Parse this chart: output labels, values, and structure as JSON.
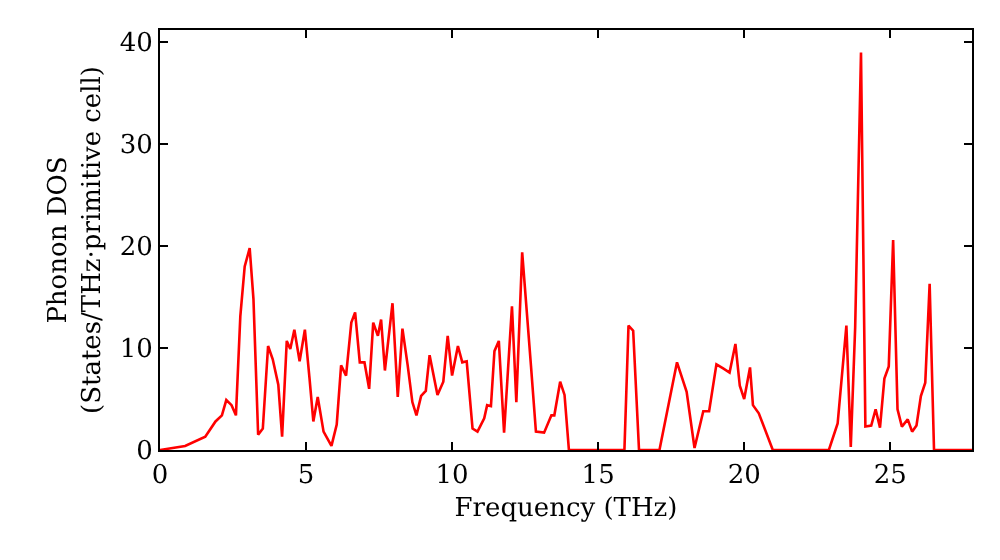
{
  "chart_data": {
    "type": "line",
    "xlabel": "Frequency (THz)",
    "ylabel": "Phonon DOS\n(States/THz·primitive cell)",
    "x": [
      0,
      0.86,
      1.55,
      1.9,
      2.12,
      2.27,
      2.45,
      2.6,
      2.75,
      2.9,
      3.07,
      3.2,
      3.36,
      3.52,
      3.7,
      3.86,
      4.05,
      4.18,
      4.34,
      4.46,
      4.6,
      4.78,
      4.96,
      5.12,
      5.25,
      5.4,
      5.6,
      5.87,
      6.05,
      6.2,
      6.37,
      6.55,
      6.68,
      6.84,
      7.0,
      7.16,
      7.3,
      7.46,
      7.57,
      7.7,
      7.96,
      8.14,
      8.3,
      8.48,
      8.64,
      8.78,
      8.94,
      9.1,
      9.23,
      9.5,
      9.7,
      9.85,
      10.0,
      10.2,
      10.35,
      10.5,
      10.7,
      10.87,
      11.1,
      11.2,
      11.33,
      11.45,
      11.6,
      11.78,
      12.05,
      12.2,
      12.4,
      12.7,
      12.87,
      13.15,
      13.4,
      13.5,
      13.7,
      13.85,
      14.0,
      15.9,
      16.04,
      16.2,
      16.4,
      17.1,
      17.7,
      18.03,
      18.3,
      18.6,
      18.8,
      19.05,
      19.28,
      19.5,
      19.7,
      19.85,
      20.0,
      20.2,
      20.3,
      20.5,
      20.98,
      22.9,
      23.2,
      23.5,
      23.65,
      23.8,
      24.0,
      24.15,
      24.35,
      24.5,
      24.65,
      24.8,
      24.95,
      25.1,
      25.25,
      25.4,
      25.6,
      25.75,
      25.9,
      26.05,
      26.2,
      26.35,
      26.5,
      27.8
    ],
    "series": [
      {
        "color": "#ff0000",
        "values": [
          0,
          0.4,
          1.3,
          2.8,
          3.4,
          4.9,
          4.4,
          3.4,
          13.1,
          18,
          19.8,
          14.8,
          1.5,
          2.1,
          10.2,
          8.9,
          6.4,
          1.3,
          10.7,
          9.9,
          11.8,
          8.7,
          11.8,
          7,
          2.8,
          5.2,
          1.8,
          0.4,
          2.5,
          8.3,
          7.3,
          12.5,
          13.5,
          8.6,
          8.6,
          6,
          12.5,
          11.2,
          12.8,
          7.8,
          14.4,
          5.2,
          11.9,
          8.3,
          4.7,
          3.4,
          5.3,
          5.8,
          9.3,
          5.4,
          6.7,
          11.2,
          7.3,
          10.2,
          8.6,
          8.7,
          2.1,
          1.8,
          3.1,
          4.4,
          4.3,
          9.7,
          10.7,
          1.7,
          14.1,
          4.7,
          19.4,
          8.3,
          1.8,
          1.7,
          3.4,
          3.4,
          6.7,
          5.4,
          0,
          0,
          12.2,
          11.7,
          0,
          0,
          8.6,
          5.7,
          0.2,
          3.8,
          3.8,
          8.4,
          8,
          7.6,
          10.4,
          6.3,
          5,
          8.1,
          4.4,
          3.6,
          0,
          0,
          2.6,
          12.2,
          0.3,
          12,
          39,
          2.3,
          2.4,
          4,
          2.2,
          7,
          8.2,
          20.6,
          4,
          2.3,
          3,
          1.8,
          2.4,
          5.3,
          6.6,
          16.3,
          0,
          0
        ]
      }
    ],
    "xlim": [
      0,
      27.8
    ],
    "ylim": [
      0,
      41.2
    ],
    "xticks": [
      0,
      5,
      10,
      15,
      20,
      25
    ],
    "yticks": [
      0,
      10,
      20,
      30,
      40
    ],
    "marker": "none",
    "line_style": "solid"
  }
}
